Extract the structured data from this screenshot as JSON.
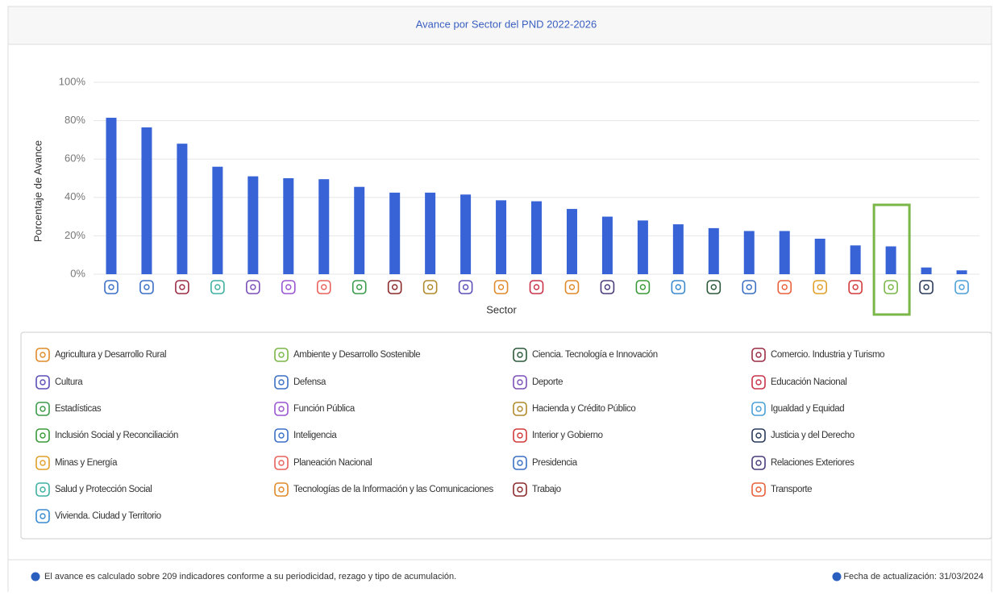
{
  "chart_data": {
    "type": "bar",
    "title": "Avance por Sector del PND 2022-2026",
    "ylabel": "Porcentaje de Avance",
    "xlabel": "Sector",
    "categories": [
      null,
      null,
      null,
      null,
      null,
      null,
      null,
      null,
      null,
      null,
      null,
      null,
      null,
      null,
      null,
      null,
      null,
      null,
      null,
      null,
      null,
      null,
      null,
      null,
      null
    ],
    "category_colors": [
      "#3a6fc4",
      "#3a6fc4",
      "#9b2c45",
      "#3fb0a0",
      "#7a4fb8",
      "#9a55d0",
      "#e8615a",
      "#3a9a4a",
      "#8a2a2a",
      "#b08a2a",
      "#5a4fb8",
      "#e08a2a",
      "#c8334a",
      "#e08a2a",
      "#4a3a7a",
      "#3a9a3a",
      "#3a8ad0",
      "#2a5a3a",
      "#3a6fc4",
      "#e8603a",
      "#e0a02a",
      "#d03a3a",
      "#7ab648",
      "#2a3a5a",
      "#4aa0d8"
    ],
    "values": [
      81.5,
      76.5,
      68,
      56,
      51,
      50,
      49.5,
      45.5,
      42.5,
      42.5,
      41.5,
      38.5,
      38,
      34,
      30,
      28,
      26,
      24,
      22.5,
      22.5,
      18.5,
      15,
      14.5,
      3.5,
      2
    ],
    "color": "#3763d6",
    "highlight_color": "#7ab648",
    "ylim": [
      0,
      100
    ],
    "yticks": [
      {
        "value": 0,
        "label": "0%"
      },
      {
        "value": 20,
        "label": "20%"
      },
      {
        "value": 40,
        "label": "40%"
      },
      {
        "value": 60,
        "label": "60%"
      },
      {
        "value": 80,
        "label": "80%"
      },
      {
        "value": 100,
        "label": "100%"
      }
    ],
    "grid": true
  },
  "legend": [
    {
      "name": "Agricultura y Desarrollo Rural",
      "color": "#e08a2a"
    },
    {
      "name": "Ambiente y Desarrollo Sostenible",
      "color": "#7ab648"
    },
    {
      "name": "Ciencia. Tecnología e Innovación",
      "color": "#2a5a3a"
    },
    {
      "name": "Comercio. Industria y Turismo",
      "color": "#9b2c45"
    },
    {
      "name": "Cultura",
      "color": "#5a4fb8"
    },
    {
      "name": "Defensa",
      "color": "#3a6fc4"
    },
    {
      "name": "Deporte",
      "color": "#7a4fb8"
    },
    {
      "name": "Educación Nacional",
      "color": "#c8334a"
    },
    {
      "name": "Estadísticas",
      "color": "#3a9a4a"
    },
    {
      "name": "Función Pública",
      "color": "#9a55d0"
    },
    {
      "name": "Hacienda y Crédito Público",
      "color": "#b08a2a"
    },
    {
      "name": "Igualdad y Equidad",
      "color": "#4aa0d8"
    },
    {
      "name": "Inclusión Social y Reconciliación",
      "color": "#3a9a3a"
    },
    {
      "name": "Inteligencia",
      "color": "#3a6fc4"
    },
    {
      "name": "Interior y Gobierno",
      "color": "#d03a3a"
    },
    {
      "name": "Justicia y del Derecho",
      "color": "#2a3a5a"
    },
    {
      "name": "Minas y Energía",
      "color": "#e0a02a"
    },
    {
      "name": "Planeación Nacional",
      "color": "#e8615a"
    },
    {
      "name": "Presidencia",
      "color": "#3a6fc4"
    },
    {
      "name": "Relaciones Exteriores",
      "color": "#4a3a7a"
    },
    {
      "name": "Salud y Protección Social",
      "color": "#3fb0a0"
    },
    {
      "name": "Tecnologías de la Información y las Comunicaciones",
      "color": "#e08a2a"
    },
    {
      "name": "Trabajo",
      "color": "#8a2a2a"
    },
    {
      "name": "Transporte",
      "color": "#e8603a"
    },
    {
      "name": "Vivienda. Ciudad y Territorio",
      "color": "#3a8ad0"
    }
  ],
  "footer": {
    "note": "El avance es calculado sobre 209 indicadores conforme a su periodicidad, rezago y tipo de acumulación.",
    "date": "Fecha de actualización: 31/03/2024"
  }
}
